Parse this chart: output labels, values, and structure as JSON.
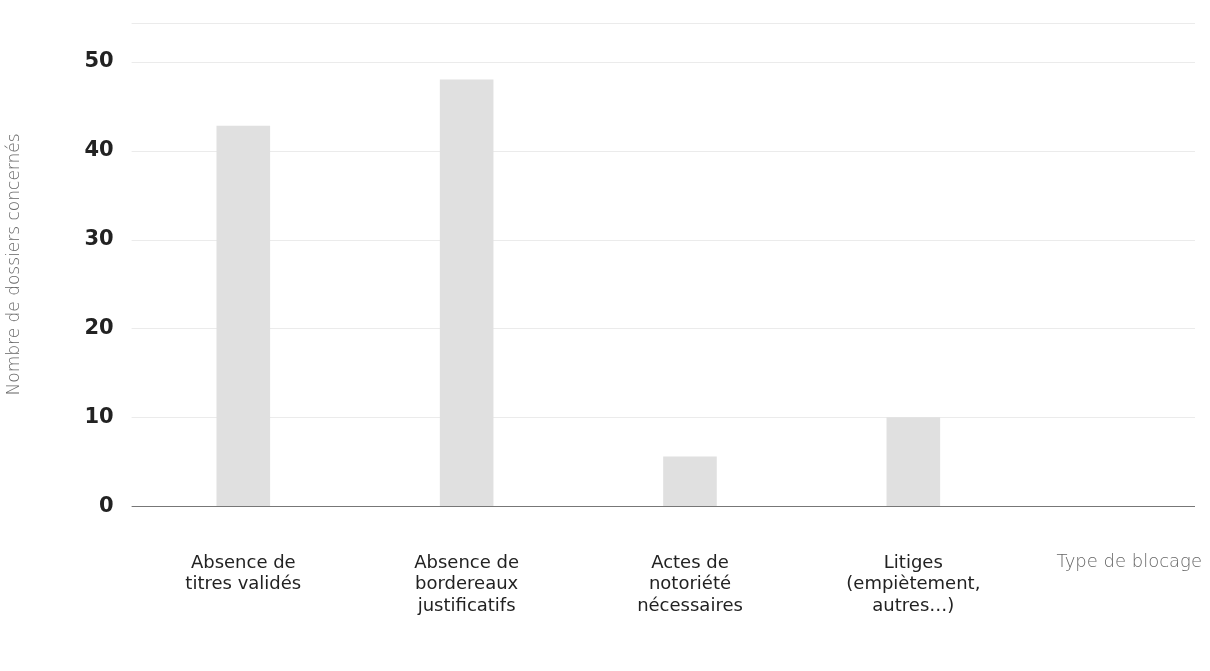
{
  "chart_data": {
    "type": "bar",
    "xlabel": "Type de blocage",
    "ylabel": "Nombre de dossiers concernés",
    "categories": [
      "Absence de titres validés",
      "Absence de bordereaux justificatifs",
      "Actes de notoriété nécessaires",
      "Litiges (empiètement, autres…)"
    ],
    "values": [
      42.8,
      48,
      5.6,
      10
    ],
    "color": "#e0e0e0",
    "ylim": [
      0,
      54.4
    ],
    "yticks": [
      0,
      10,
      20,
      30,
      40,
      50
    ],
    "grid": "y",
    "legend": false
  }
}
